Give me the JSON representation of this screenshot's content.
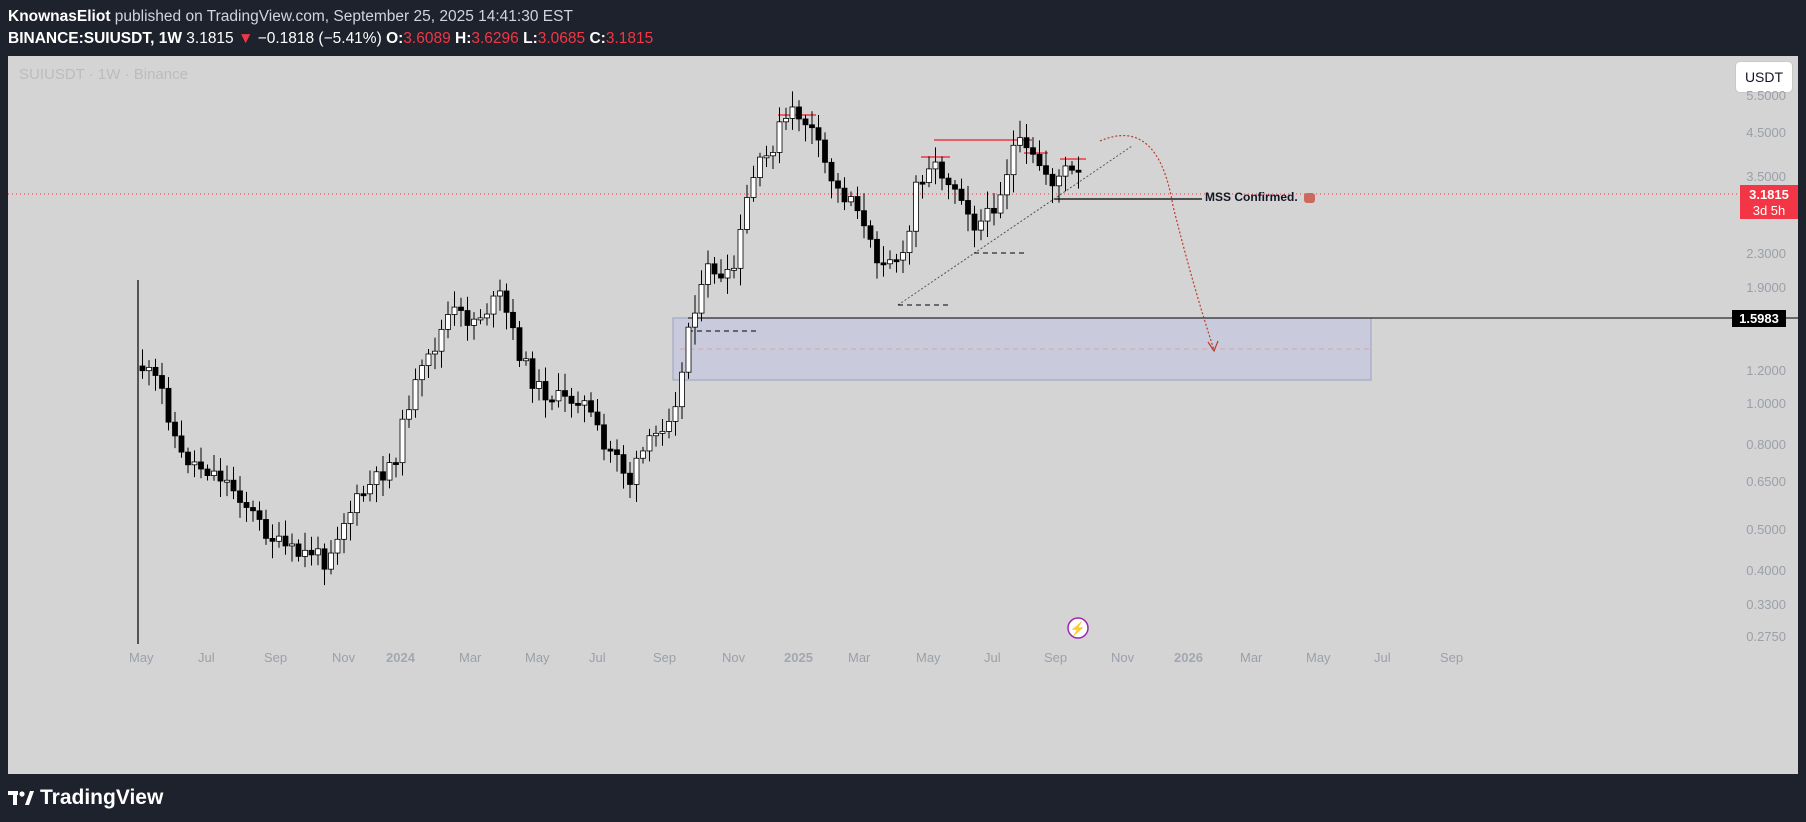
{
  "header": {
    "author": "KnownasEliot",
    "published": "published on TradingView.com, September 25, 2025 14:41:30 EST",
    "symbol": "BINANCE:SUIUSDT, 1W",
    "price": "3.1815",
    "change": "−0.1818 (−5.41%)",
    "o_label": "O:",
    "o_val": "3.6089",
    "h_label": "H:",
    "h_val": "3.6296",
    "l_label": "L:",
    "l_val": "3.0685",
    "c_label": "C:",
    "c_val": "3.1815"
  },
  "chart": {
    "watermark": "SUIUSDT · 1W · Binance",
    "currency_button": "USDT",
    "price_axis_labels": [
      "5.5000",
      "4.5000",
      "3.5000",
      "2.3000",
      "1.9000",
      "1.2000",
      "1.0000",
      "0.8000",
      "0.6500",
      "0.5000",
      "0.4000",
      "0.3300",
      "0.2750"
    ],
    "time_axis_labels": [
      "May",
      "Jul",
      "Sep",
      "Nov",
      "2024",
      "Mar",
      "May",
      "Jul",
      "Sep",
      "Nov",
      "2025",
      "Mar",
      "May",
      "Jul",
      "Sep",
      "Nov",
      "2026",
      "Mar",
      "May",
      "Jul",
      "Sep"
    ],
    "last_price_label": "3.1815",
    "countdown_label": "3d 5h",
    "level_label": "1.5983",
    "annotation": "MSS Confirmed.",
    "colors": {
      "background": "#d4d4d4",
      "last_price": "#f23645",
      "level_tag": "#000000",
      "zone": "#c9cbdc"
    }
  },
  "footer": {
    "brand": "TradingView"
  }
}
